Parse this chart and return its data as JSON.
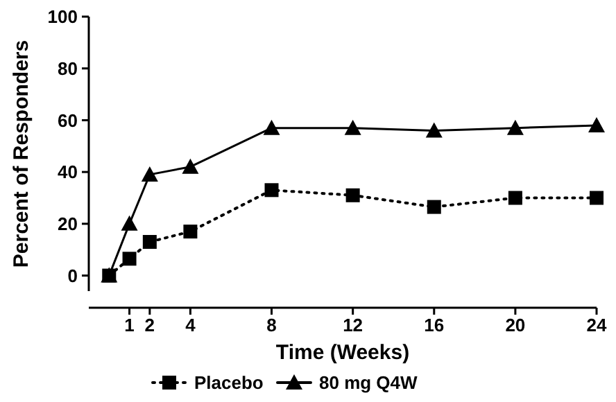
{
  "chart_data": {
    "type": "line",
    "xlabel": "Time  (Weeks)",
    "ylabel": "Percent of Responders",
    "x": [
      0,
      1,
      2,
      4,
      8,
      12,
      16,
      20,
      24
    ],
    "xlim": [
      -1,
      24
    ],
    "xticks": [
      1,
      2,
      4,
      8,
      12,
      16,
      20,
      24
    ],
    "ylim": [
      -6,
      100
    ],
    "yticks": [
      0,
      20,
      40,
      60,
      80,
      100
    ],
    "grid": false,
    "legend": "bottom",
    "series": [
      {
        "name": "Placebo",
        "color": "#000000",
        "marker": "square",
        "line_style": "dotted",
        "values": [
          0,
          6.5,
          13,
          17,
          33,
          31,
          26.5,
          30,
          30
        ]
      },
      {
        "name": "80 mg Q4W",
        "color": "#000000",
        "marker": "triangle",
        "line_style": "solid",
        "values": [
          0,
          20,
          39,
          42,
          57,
          57,
          56,
          57,
          58
        ]
      }
    ]
  }
}
